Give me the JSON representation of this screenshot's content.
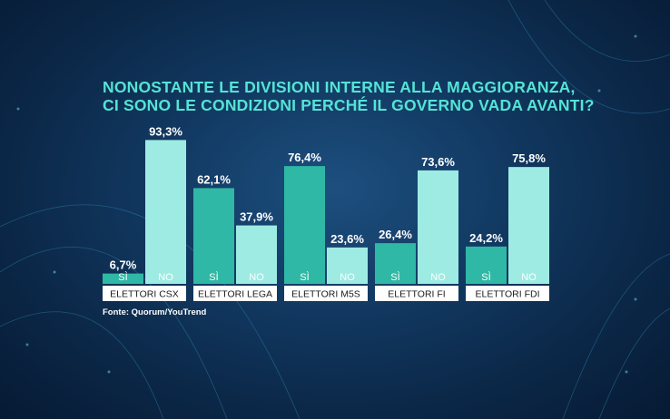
{
  "chart_data": {
    "type": "bar",
    "title_lines": [
      "NONOSTANTE LE DIVISIONI INTERNE ALLA MAGGIORANZA,",
      "CI SONO LE CONDIZIONI PERCHÉ IL GOVERNO VADA AVANTI?"
    ],
    "source": "Fonte: Quorum/YouTrend",
    "series_names": [
      "SÌ",
      "NO"
    ],
    "ylim": [
      0,
      100
    ],
    "groups": [
      {
        "category": "ELETTORI CSX",
        "values": [
          6.7,
          93.3
        ],
        "value_labels": [
          "6,7%",
          "93,3%"
        ]
      },
      {
        "category": "ELETTORI LEGA",
        "values": [
          62.1,
          37.9
        ],
        "value_labels": [
          "62,1%",
          "37,9%"
        ]
      },
      {
        "category": "ELETTORI M5S",
        "values": [
          76.4,
          23.6
        ],
        "value_labels": [
          "76,4%",
          "23,6%"
        ]
      },
      {
        "category": "ELETTORI FI",
        "values": [
          26.4,
          73.6
        ],
        "value_labels": [
          "26,4%",
          "73,6%"
        ]
      },
      {
        "category": "ELETTORI FDI",
        "values": [
          24.2,
          75.8
        ],
        "value_labels": [
          "24,2%",
          "75,8%"
        ]
      }
    ],
    "colors": {
      "si_bar": "#2fb8a5",
      "no_bar": "#9eebe3",
      "category_bar": "#ffffff",
      "title": "#55e3d5",
      "value_label": "#ffffff"
    }
  }
}
